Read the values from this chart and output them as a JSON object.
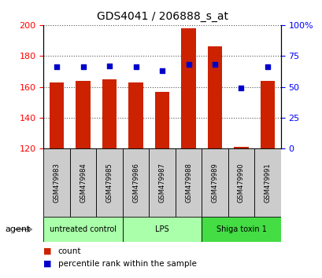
{
  "title": "GDS4041 / 206888_s_at",
  "samples": [
    "GSM479983",
    "GSM479984",
    "GSM479985",
    "GSM479986",
    "GSM479987",
    "GSM479988",
    "GSM479989",
    "GSM479990",
    "GSM479991"
  ],
  "counts": [
    163,
    164,
    165,
    163,
    157,
    198,
    186,
    121,
    164
  ],
  "percentiles": [
    66,
    66,
    67,
    66,
    63,
    68,
    68,
    49,
    66
  ],
  "ylim_left": [
    120,
    200
  ],
  "ylim_right": [
    0,
    100
  ],
  "yticks_left": [
    120,
    140,
    160,
    180,
    200
  ],
  "yticks_right": [
    0,
    25,
    50,
    75,
    100
  ],
  "bar_color": "#cc2200",
  "dot_color": "#0000cc",
  "sample_box_color": "#cccccc",
  "group_colors": [
    "#aaffaa",
    "#aaffaa",
    "#44dd44"
  ],
  "group_labels": [
    "untreated control",
    "LPS",
    "Shiga toxin 1"
  ],
  "group_starts": [
    0,
    3,
    6
  ],
  "group_ends": [
    3,
    6,
    9
  ],
  "agent_label": "agent",
  "legend_count_color": "#cc2200",
  "legend_pct_color": "#0000cc",
  "bar_bottom": 120
}
